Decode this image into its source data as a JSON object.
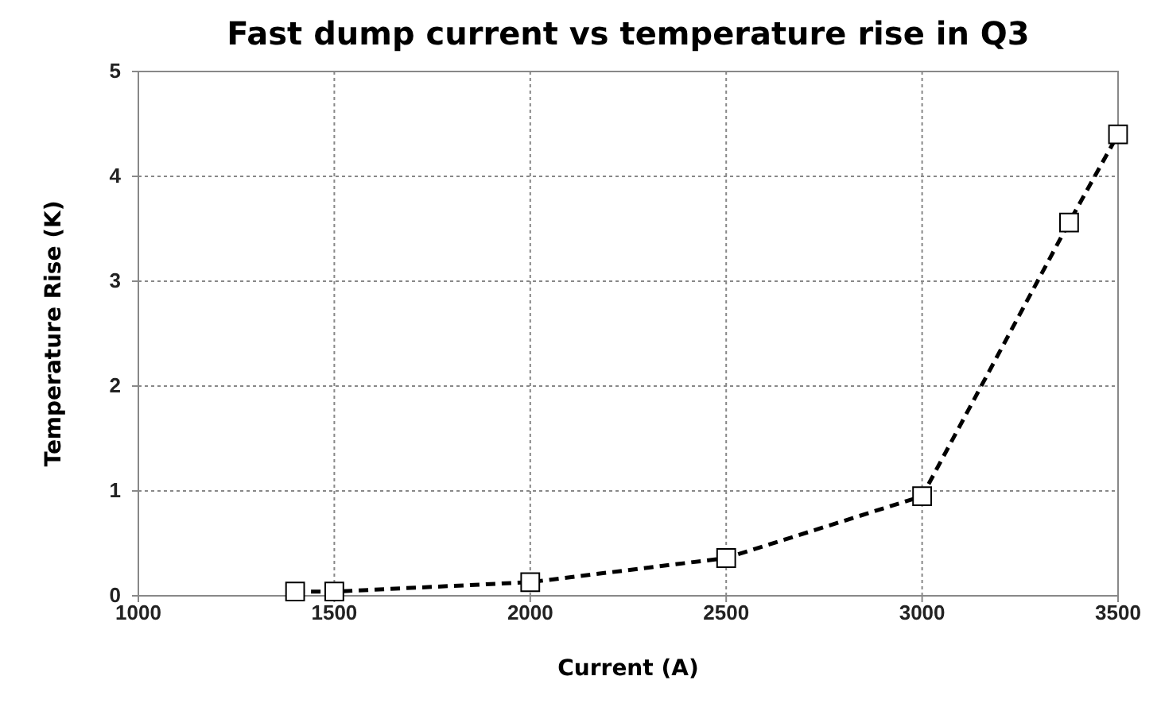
{
  "chart_data": {
    "type": "line",
    "title": "Fast dump current vs temperature rise in Q3",
    "xlabel": "Current (A)",
    "ylabel": "Temperature Rise (K)",
    "x": [
      1400,
      1500,
      2000,
      2500,
      3000,
      3375,
      3500
    ],
    "series": [
      {
        "color": "#000000",
        "values": [
          0.04,
          0.04,
          0.13,
          0.36,
          0.95,
          3.56,
          4.4
        ]
      }
    ],
    "xlim": [
      1000,
      3500
    ],
    "xticks": [
      1000,
      1500,
      2000,
      2500,
      3000,
      3500
    ],
    "ylim": [
      0,
      5
    ],
    "yticks": [
      0,
      1,
      2,
      3,
      4,
      5
    ],
    "grid": true,
    "marker": "square",
    "line_style": "dashed"
  }
}
